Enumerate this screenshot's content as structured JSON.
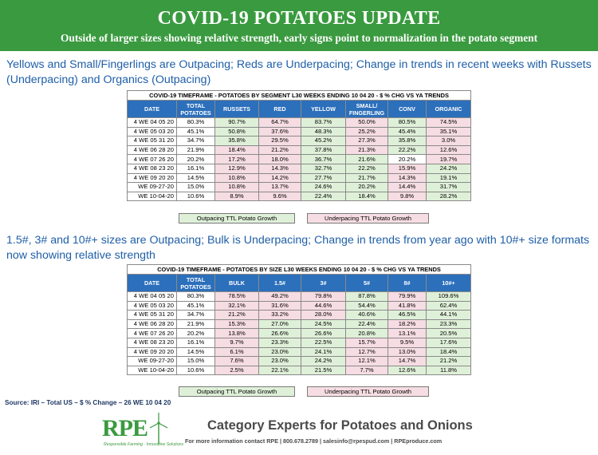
{
  "banner": {
    "title": "COVID-19 POTATOES UPDATE",
    "subtitle": "Outside of larger sizes showing relative strength, early signs point to normalization in the potato segment"
  },
  "section1": {
    "headline": "Yellows and Small/Fingerlings are Outpacing; Reds are Underpacing; Change in trends in recent weeks with Russets (Underpacing) and Organics (Outpacing)",
    "table": {
      "caption": "COVID-19 TIMEFRAME - POTATOES BY SEGMENT L30 WEEKS ENDING 10 04 20 - $ % CHG VS YA TRENDS",
      "headers": [
        "DATE",
        "TOTAL POTATOES",
        "RUSSETS",
        "RED",
        "YELLOW",
        "SMALL/ FINGERLING",
        "CONV",
        "ORGANIC"
      ],
      "rows": [
        {
          "date": "4 WE 04 05 20",
          "cells": [
            [
              "80.3%",
              "w"
            ],
            [
              "90.7%",
              "g"
            ],
            [
              "64.7%",
              "r"
            ],
            [
              "83.7%",
              "g"
            ],
            [
              "50.0%",
              "r"
            ],
            [
              "80.5%",
              "g"
            ],
            [
              "74.5%",
              "r"
            ]
          ]
        },
        {
          "date": "4 WE 05 03 20",
          "cells": [
            [
              "45.1%",
              "w"
            ],
            [
              "50.8%",
              "g"
            ],
            [
              "37.6%",
              "r"
            ],
            [
              "48.3%",
              "g"
            ],
            [
              "25.2%",
              "r"
            ],
            [
              "45.4%",
              "g"
            ],
            [
              "35.1%",
              "r"
            ]
          ]
        },
        {
          "date": "4 WE 05 31 20",
          "cells": [
            [
              "34.7%",
              "w"
            ],
            [
              "35.8%",
              "g"
            ],
            [
              "29.5%",
              "r"
            ],
            [
              "45.2%",
              "g"
            ],
            [
              "27.3%",
              "r"
            ],
            [
              "35.8%",
              "g"
            ],
            [
              "3.0%",
              "r"
            ]
          ]
        },
        {
          "date": "4 WE 06 28 20",
          "cells": [
            [
              "21.9%",
              "w"
            ],
            [
              "18.4%",
              "r"
            ],
            [
              "21.2%",
              "r"
            ],
            [
              "37.8%",
              "g"
            ],
            [
              "21.3%",
              "r"
            ],
            [
              "22.2%",
              "g"
            ],
            [
              "12.6%",
              "r"
            ]
          ]
        },
        {
          "date": "4 WE 07 26 20",
          "cells": [
            [
              "20.2%",
              "w"
            ],
            [
              "17.2%",
              "r"
            ],
            [
              "18.0%",
              "r"
            ],
            [
              "36.7%",
              "g"
            ],
            [
              "21.6%",
              "g"
            ],
            [
              "20.2%",
              "w"
            ],
            [
              "19.7%",
              "r"
            ]
          ]
        },
        {
          "date": "4 WE 08 23 20",
          "cells": [
            [
              "16.1%",
              "w"
            ],
            [
              "12.9%",
              "r"
            ],
            [
              "14.3%",
              "r"
            ],
            [
              "32.7%",
              "g"
            ],
            [
              "22.2%",
              "g"
            ],
            [
              "15.9%",
              "r"
            ],
            [
              "24.2%",
              "g"
            ]
          ]
        },
        {
          "date": "4 WE 09 20 20",
          "cells": [
            [
              "14.5%",
              "w"
            ],
            [
              "10.8%",
              "r"
            ],
            [
              "14.2%",
              "r"
            ],
            [
              "27.7%",
              "g"
            ],
            [
              "21.7%",
              "g"
            ],
            [
              "14.3%",
              "r"
            ],
            [
              "19.1%",
              "g"
            ]
          ]
        },
        {
          "date": "WE 09-27-20",
          "cells": [
            [
              "15.0%",
              "w"
            ],
            [
              "10.8%",
              "r"
            ],
            [
              "13.7%",
              "r"
            ],
            [
              "24.6%",
              "g"
            ],
            [
              "20.2%",
              "g"
            ],
            [
              "14.4%",
              "r"
            ],
            [
              "31.7%",
              "g"
            ]
          ]
        },
        {
          "date": "WE 10-04-20",
          "cells": [
            [
              "10.6%",
              "w"
            ],
            [
              "8.9%",
              "r"
            ],
            [
              "9.6%",
              "r"
            ],
            [
              "22.4%",
              "g"
            ],
            [
              "18.4%",
              "g"
            ],
            [
              "9.8%",
              "r"
            ],
            [
              "28.2%",
              "g"
            ]
          ]
        }
      ]
    },
    "legend": {
      "outpacing": "Outpacing TTL Potato Growth",
      "underpacing": "Underpacing TTL Potato Growth"
    }
  },
  "section2": {
    "headline": "1.5#, 3# and 10#+ sizes are Outpacing; Bulk is Underpacing; Change in trends from year ago with 10#+ size formats now showing relative strength",
    "table": {
      "caption": "COVID-19 TIMEFRAME - POTATOES BY SIZE L30 WEEKS ENDING 10 04 20 - $ % CHG VS YA TRENDS",
      "headers": [
        "DATE",
        "TOTAL POTATOES",
        "BULK",
        "1.5#",
        "3#",
        "5#",
        "8#",
        "10#+"
      ],
      "rows": [
        {
          "date": "4 WE 04 05 20",
          "cells": [
            [
              "80.3%",
              "w"
            ],
            [
              "78.5%",
              "r"
            ],
            [
              "49.2%",
              "r"
            ],
            [
              "79.8%",
              "r"
            ],
            [
              "87.8%",
              "g"
            ],
            [
              "79.9%",
              "r"
            ],
            [
              "109.6%",
              "g"
            ]
          ]
        },
        {
          "date": "4 WE 05 03 20",
          "cells": [
            [
              "45.1%",
              "w"
            ],
            [
              "32.1%",
              "r"
            ],
            [
              "31.6%",
              "r"
            ],
            [
              "44.6%",
              "r"
            ],
            [
              "54.4%",
              "g"
            ],
            [
              "41.8%",
              "r"
            ],
            [
              "62.4%",
              "g"
            ]
          ]
        },
        {
          "date": "4 WE 05 31 20",
          "cells": [
            [
              "34.7%",
              "w"
            ],
            [
              "21.2%",
              "r"
            ],
            [
              "33.2%",
              "r"
            ],
            [
              "28.0%",
              "r"
            ],
            [
              "40.6%",
              "g"
            ],
            [
              "46.5%",
              "g"
            ],
            [
              "44.1%",
              "g"
            ]
          ]
        },
        {
          "date": "4 WE 06 28 20",
          "cells": [
            [
              "21.9%",
              "w"
            ],
            [
              "15.3%",
              "r"
            ],
            [
              "27.0%",
              "g"
            ],
            [
              "24.5%",
              "g"
            ],
            [
              "22.4%",
              "g"
            ],
            [
              "18.2%",
              "r"
            ],
            [
              "23.3%",
              "g"
            ]
          ]
        },
        {
          "date": "4 WE 07 26 20",
          "cells": [
            [
              "20.2%",
              "w"
            ],
            [
              "13.8%",
              "r"
            ],
            [
              "26.6%",
              "g"
            ],
            [
              "26.6%",
              "g"
            ],
            [
              "20.8%",
              "g"
            ],
            [
              "13.1%",
              "r"
            ],
            [
              "20.5%",
              "g"
            ]
          ]
        },
        {
          "date": "4 WE 08 23 20",
          "cells": [
            [
              "16.1%",
              "w"
            ],
            [
              "9.7%",
              "r"
            ],
            [
              "23.3%",
              "g"
            ],
            [
              "22.5%",
              "g"
            ],
            [
              "15.7%",
              "r"
            ],
            [
              "9.5%",
              "r"
            ],
            [
              "17.6%",
              "g"
            ]
          ]
        },
        {
          "date": "4 WE 09 20 20",
          "cells": [
            [
              "14.5%",
              "w"
            ],
            [
              "6.1%",
              "r"
            ],
            [
              "23.0%",
              "g"
            ],
            [
              "24.1%",
              "g"
            ],
            [
              "12.7%",
              "r"
            ],
            [
              "13.0%",
              "r"
            ],
            [
              "18.4%",
              "g"
            ]
          ]
        },
        {
          "date": "WE 09-27-20",
          "cells": [
            [
              "15.0%",
              "w"
            ],
            [
              "7.6%",
              "r"
            ],
            [
              "23.0%",
              "g"
            ],
            [
              "24.2%",
              "g"
            ],
            [
              "12.1%",
              "r"
            ],
            [
              "14.7%",
              "r"
            ],
            [
              "21.2%",
              "g"
            ]
          ]
        },
        {
          "date": "WE 10-04-20",
          "cells": [
            [
              "10.6%",
              "w"
            ],
            [
              "2.5%",
              "r"
            ],
            [
              "22.1%",
              "g"
            ],
            [
              "21.5%",
              "g"
            ],
            [
              "7.7%",
              "r"
            ],
            [
              "12.6%",
              "g"
            ],
            [
              "11.8%",
              "g"
            ]
          ]
        }
      ]
    },
    "legend": {
      "outpacing": "Outpacing TTL Potato Growth",
      "underpacing": "Underpacing TTL Potato Growth"
    }
  },
  "source": "Source: IRI – Total US – $ % Change – 26 WE 10 04 20",
  "footer": {
    "logo_text": "RPE",
    "logo_tagline": "Responsible Farming · Innovative Solutions",
    "category": "Category Experts for Potatoes and Onions",
    "contact": "For more information contact RPE  |  800.678.2789  |  salesinfo@rpespud.com  |  RPEproduce.com"
  },
  "colors": {
    "banner": "#3a9a3f",
    "headline": "#1f5fa8",
    "header": "#2c6fbb",
    "outpacing": "#dff0d8",
    "underpacing": "#f6dce3"
  }
}
